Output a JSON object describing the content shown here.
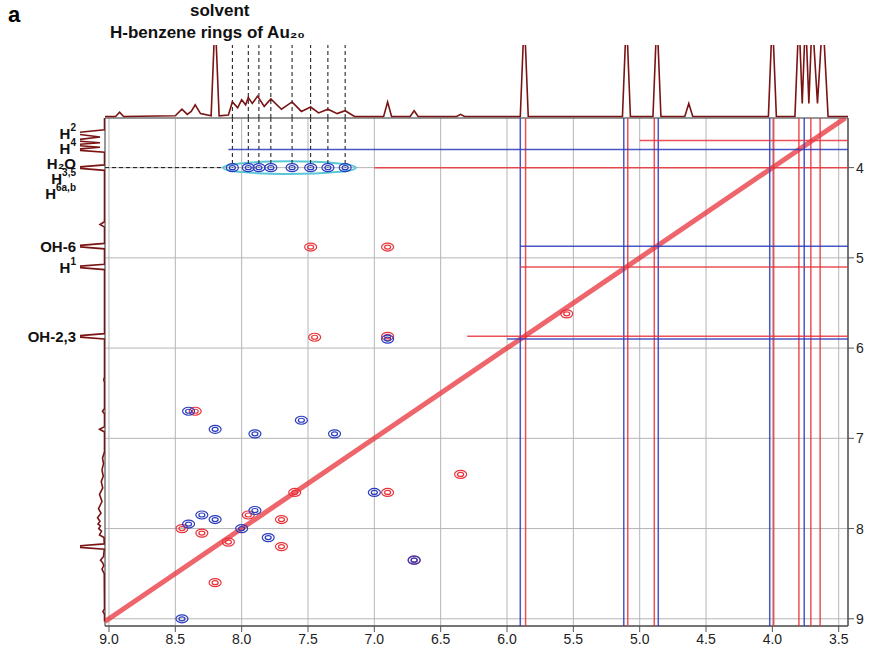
{
  "panel_label": "a",
  "chart_data": {
    "type": "scatter",
    "xlim": [
      9.03,
      3.43
    ],
    "xticks": [
      {
        "value": 9,
        "label": "9.0"
      },
      8.5,
      {
        "value": 8,
        "label": "8.0"
      },
      7.5,
      {
        "value": 7,
        "label": "7.0"
      },
      6.5,
      {
        "value": 6,
        "label": "6.0"
      },
      5.5,
      {
        "value": 5,
        "label": "5.0"
      },
      4.5,
      {
        "value": 4,
        "label": "4.0"
      },
      3.5
    ],
    "ylim": [
      9.08,
      3.45
    ],
    "yticks": [
      4,
      5,
      6,
      7,
      8,
      9
    ],
    "grid": true,
    "annotations": [
      {
        "text": "solvent"
      },
      {
        "text": "H-benzene rings of Au₂₀"
      }
    ],
    "peak_labels": [
      {
        "text": "H",
        "sup": "2",
        "y": 3.62
      },
      {
        "text": "H",
        "sup": "4",
        "y": 3.68
      },
      {
        "text": "H₂O",
        "y": 3.75
      },
      {
        "text": "H",
        "sup": "3,5",
        "y": 3.82
      },
      {
        "text": "H",
        "sup": "6a,b",
        "y": 4.02
      },
      {
        "text": "OH-6",
        "y": 4.87
      },
      {
        "text": "H",
        "sup": "1",
        "y": 5.1
      },
      {
        "text": "OH-2,3",
        "y": 5.87
      }
    ],
    "spectrum": {
      "color": "#7a1414",
      "intensity_range": [
        0,
        100
      ],
      "points": [
        [
          9.03,
          2
        ],
        [
          8.95,
          2
        ],
        [
          8.92,
          8
        ],
        [
          8.89,
          2
        ],
        [
          8.5,
          3
        ],
        [
          8.45,
          12
        ],
        [
          8.41,
          5
        ],
        [
          8.38,
          9
        ],
        [
          8.35,
          18
        ],
        [
          8.31,
          6
        ],
        [
          8.23,
          3
        ],
        [
          8.2,
          140
        ],
        [
          8.17,
          3
        ],
        [
          8.1,
          4
        ],
        [
          8.07,
          22
        ],
        [
          8.03,
          14
        ],
        [
          8.0,
          25
        ],
        [
          7.97,
          18
        ],
        [
          7.95,
          28
        ],
        [
          7.92,
          20
        ],
        [
          7.88,
          30
        ],
        [
          7.83,
          16
        ],
        [
          7.78,
          26
        ],
        [
          7.7,
          12
        ],
        [
          7.62,
          22
        ],
        [
          7.55,
          9
        ],
        [
          7.48,
          15
        ],
        [
          7.42,
          7
        ],
        [
          7.35,
          12
        ],
        [
          7.28,
          6
        ],
        [
          7.22,
          10
        ],
        [
          7.15,
          2
        ],
        [
          6.93,
          2
        ],
        [
          6.9,
          22
        ],
        [
          6.87,
          2
        ],
        [
          6.73,
          2
        ],
        [
          6.7,
          10
        ],
        [
          6.67,
          2
        ],
        [
          6.38,
          2
        ],
        [
          6.35,
          5
        ],
        [
          6.32,
          2
        ],
        [
          5.9,
          2
        ],
        [
          5.87,
          140
        ],
        [
          5.84,
          2
        ],
        [
          5.13,
          2
        ],
        [
          5.1,
          140
        ],
        [
          5.07,
          2
        ],
        [
          4.9,
          2
        ],
        [
          4.87,
          140
        ],
        [
          4.84,
          2
        ],
        [
          4.66,
          2
        ],
        [
          4.63,
          20
        ],
        [
          4.6,
          2
        ],
        [
          4.03,
          2
        ],
        [
          4.0,
          140
        ],
        [
          3.97,
          2
        ],
        [
          3.83,
          2
        ],
        [
          3.8,
          140
        ],
        [
          3.775,
          20
        ],
        [
          3.75,
          140
        ],
        [
          3.725,
          20
        ],
        [
          3.7,
          140
        ],
        [
          3.66,
          20
        ],
        [
          3.62,
          140
        ],
        [
          3.58,
          2
        ],
        [
          3.43,
          2
        ]
      ]
    },
    "highlight": {
      "color": "#5bc8d8",
      "line_style": "dashed",
      "x": [
        8.07,
        7.95,
        7.87,
        7.78,
        7.62,
        7.48,
        7.35,
        7.22
      ],
      "y": 4.0,
      "x_range": [
        8.14,
        7.14
      ],
      "y_range": [
        3.93,
        4.07
      ]
    },
    "series": [
      {
        "type": "line",
        "color": "#e8333a",
        "line_style": "solid",
        "x": [
          9.03,
          3.45
        ],
        "y": [
          9.03,
          3.45
        ]
      },
      {
        "type": "line",
        "color": "#2a3bbd",
        "line_style": "solid",
        "x": [
          5.9,
          5.9
        ],
        "y": [
          3.45,
          9.08
        ]
      },
      {
        "type": "line",
        "color": "#e8333a",
        "line_style": "solid",
        "x": [
          5.86,
          5.86
        ],
        "y": [
          3.45,
          9.08
        ]
      },
      {
        "type": "line",
        "color": "#2a3bbd",
        "line_style": "solid",
        "x": [
          5.12,
          5.12
        ],
        "y": [
          3.45,
          9.08
        ]
      },
      {
        "type": "line",
        "color": "#e8333a",
        "line_style": "solid",
        "x": [
          5.09,
          5.09
        ],
        "y": [
          3.45,
          9.08
        ]
      },
      {
        "type": "line",
        "color": "#e8333a",
        "line_style": "solid",
        "x": [
          4.89,
          4.89
        ],
        "y": [
          3.45,
          9.08
        ]
      },
      {
        "type": "line",
        "color": "#2a3bbd",
        "line_style": "solid",
        "x": [
          4.86,
          4.86
        ],
        "y": [
          3.45,
          9.08
        ]
      },
      {
        "type": "line",
        "color": "#2a3bbd",
        "line_style": "solid",
        "x": [
          4.02,
          4.02
        ],
        "y": [
          3.45,
          9.08
        ]
      },
      {
        "type": "line",
        "color": "#e8333a",
        "line_style": "solid",
        "x": [
          3.99,
          3.99
        ],
        "y": [
          3.45,
          9.08
        ]
      },
      {
        "type": "line",
        "color": "#e8333a",
        "line_style": "solid",
        "x": [
          3.8,
          3.8
        ],
        "y": [
          3.45,
          9.08
        ]
      },
      {
        "type": "line",
        "color": "#2a3bbd",
        "line_style": "solid",
        "x": [
          3.76,
          3.76
        ],
        "y": [
          3.45,
          9.08
        ]
      },
      {
        "type": "line",
        "color": "#e8333a",
        "line_style": "solid",
        "x": [
          3.71,
          3.71
        ],
        "y": [
          3.45,
          9.08
        ]
      },
      {
        "type": "line",
        "color": "#e8333a",
        "line_style": "solid",
        "x": [
          3.64,
          3.64
        ],
        "y": [
          3.45,
          9.08
        ]
      },
      {
        "type": "line",
        "color": "#e8333a",
        "line_style": "solid",
        "x": [
          6.3,
          3.43
        ],
        "y": [
          5.87,
          5.87
        ]
      },
      {
        "type": "line",
        "color": "#2a3bbd",
        "line_style": "solid",
        "x": [
          6.0,
          3.43
        ],
        "y": [
          5.9,
          5.9
        ]
      },
      {
        "type": "line",
        "color": "#e8333a",
        "line_style": "solid",
        "x": [
          5.9,
          3.43
        ],
        "y": [
          5.1,
          5.1
        ]
      },
      {
        "type": "line",
        "color": "#2a3bbd",
        "line_style": "solid",
        "x": [
          5.9,
          3.43
        ],
        "y": [
          4.87,
          4.87
        ]
      },
      {
        "type": "line",
        "color": "#e8333a",
        "line_style": "solid",
        "x": [
          7.0,
          3.43
        ],
        "y": [
          4.0,
          4.0
        ]
      },
      {
        "type": "line",
        "color": "#2a3bbd",
        "line_style": "solid",
        "x": [
          8.1,
          3.43
        ],
        "y": [
          3.8,
          3.8
        ]
      },
      {
        "type": "line",
        "color": "#e8333a",
        "line_style": "solid",
        "x": [
          5.0,
          3.43
        ],
        "y": [
          3.7,
          3.7
        ]
      },
      {
        "type": "scatter",
        "color": "#e8333a",
        "marker": "contour",
        "x": [
          7.48,
          7.45,
          6.9,
          6.9,
          6.9,
          6.7,
          8.35,
          8.3,
          8.1,
          7.95,
          7.7,
          8.45,
          7.6,
          7.7,
          6.35,
          5.55,
          8.2
        ],
        "y": [
          4.88,
          5.88,
          4.88,
          5.87,
          7.6,
          8.35,
          6.7,
          8.05,
          8.15,
          7.85,
          7.9,
          8.0,
          7.6,
          8.2,
          7.4,
          5.62,
          8.6
        ]
      },
      {
        "type": "scatter",
        "color": "#2a3bbd",
        "marker": "contour",
        "x": [
          8.07,
          7.95,
          7.87,
          7.78,
          7.62,
          7.48,
          7.35,
          7.22,
          8.4,
          8.2,
          7.9,
          7.55,
          7.3,
          7.0,
          8.45,
          8.3,
          8.2,
          8.0,
          7.8,
          7.9,
          8.4,
          6.7,
          6.9
        ],
        "y": [
          4.0,
          4.0,
          4.0,
          4.0,
          4.0,
          4.0,
          4.0,
          4.0,
          6.7,
          6.9,
          6.95,
          6.8,
          6.95,
          7.6,
          9.0,
          7.85,
          7.9,
          8.0,
          8.1,
          7.8,
          7.95,
          8.35,
          5.9
        ]
      }
    ]
  }
}
